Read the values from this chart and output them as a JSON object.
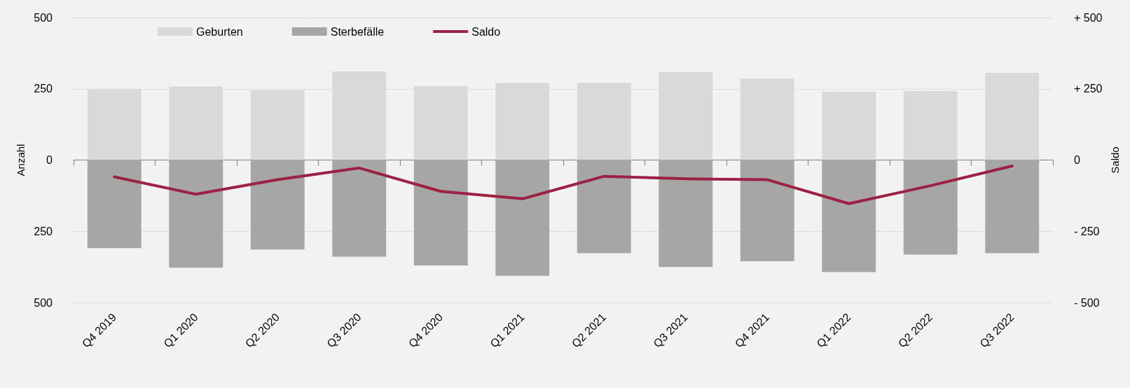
{
  "chart_data": {
    "type": "bar",
    "stacked": true,
    "categories": [
      "Q4 2019",
      "Q1 2020",
      "Q2 2020",
      "Q3 2020",
      "Q4 2020",
      "Q1 2021",
      "Q2 2021",
      "Q3 2021",
      "Q4 2021",
      "Q1 2022",
      "Q2 2022",
      "Q3 2022"
    ],
    "series": [
      {
        "name": "Geburten",
        "color": "#d9d9d9",
        "values": [
          250,
          258,
          245,
          311,
          260,
          270,
          270,
          309,
          286,
          240,
          242,
          306
        ]
      },
      {
        "name": "Sterbefälle",
        "color": "#a6a6a6",
        "values": [
          -309,
          -378,
          -314,
          -339,
          -370,
          -406,
          -327,
          -375,
          -355,
          -393,
          -332,
          -327
        ]
      },
      {
        "name": "Saldo",
        "type": "line",
        "axis": "y2",
        "color": "#9b2242",
        "marker": "none",
        "values": [
          -59,
          -120,
          -69,
          -28,
          -110,
          -136,
          -57,
          -66,
          -69,
          -153,
          -90,
          -21
        ]
      }
    ],
    "ylabel": "Anzahl",
    "y2label": "Saldo",
    "ylim": [
      -500,
      500
    ],
    "yticks": [
      {
        "value": -500,
        "label": "500"
      },
      {
        "value": -250,
        "label": "250"
      },
      0,
      250,
      500
    ],
    "y2lim": [
      -500,
      500
    ],
    "y2ticks": [
      {
        "value": -500,
        "label": "- 500"
      },
      {
        "value": -250,
        "label": "- 250"
      },
      0,
      {
        "value": 250,
        "label": "+ 250"
      },
      {
        "value": 500,
        "label": "+ 500"
      }
    ],
    "grid": "y",
    "legend": "top left"
  }
}
